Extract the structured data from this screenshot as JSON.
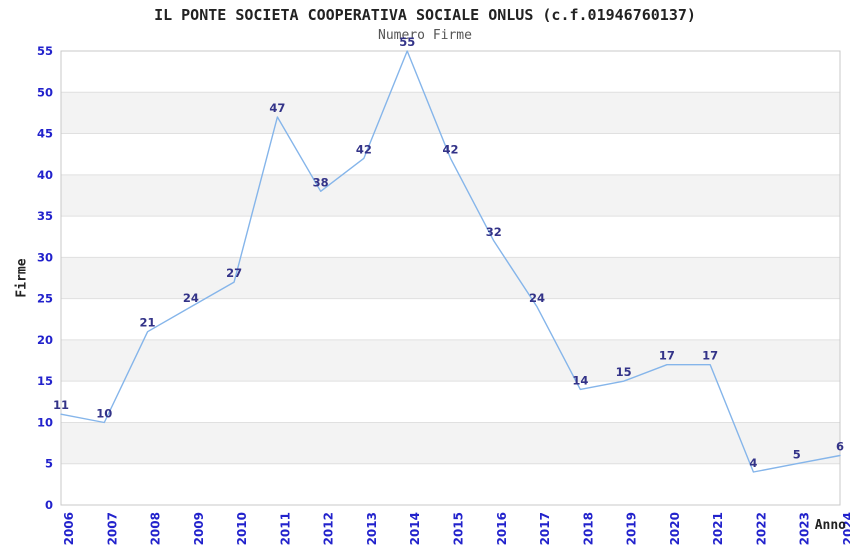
{
  "header": {
    "title": "IL PONTE SOCIETA COOPERATIVA SOCIALE ONLUS (c.f.01946760137)",
    "subtitle": "Numero Firme"
  },
  "chart_data": {
    "type": "line",
    "title": "IL PONTE SOCIETA COOPERATIVA SOCIALE ONLUS (c.f.01946760137)",
    "subtitle": "Numero Firme",
    "xlabel": "Anno",
    "ylabel": "Firme",
    "categories": [
      "2006",
      "2007",
      "2008",
      "2009",
      "2010",
      "2011",
      "2012",
      "2013",
      "2014",
      "2015",
      "2016",
      "2017",
      "2018",
      "2019",
      "2020",
      "2021",
      "2022",
      "2023",
      "2024"
    ],
    "values": [
      11,
      10,
      21,
      24,
      27,
      47,
      38,
      42,
      55,
      42,
      32,
      24,
      14,
      15,
      17,
      17,
      4,
      5,
      6
    ],
    "ylim": [
      0,
      55
    ],
    "yticks": [
      0,
      5,
      10,
      15,
      20,
      25,
      30,
      35,
      40,
      45,
      50,
      55
    ],
    "grid": "horizontal-bands-alternating",
    "legend": "none",
    "point_labels_shown": true,
    "colors": {
      "line": "#85b5ea",
      "tick_label": "#2222cc",
      "data_label": "#333388",
      "band_gray": "#f3f3f3",
      "band_white": "#ffffff",
      "gridline": "#e0e0e0",
      "plot_border": "#c9c9c9",
      "title_text": "#222222",
      "subtitle_text": "#555555"
    }
  }
}
